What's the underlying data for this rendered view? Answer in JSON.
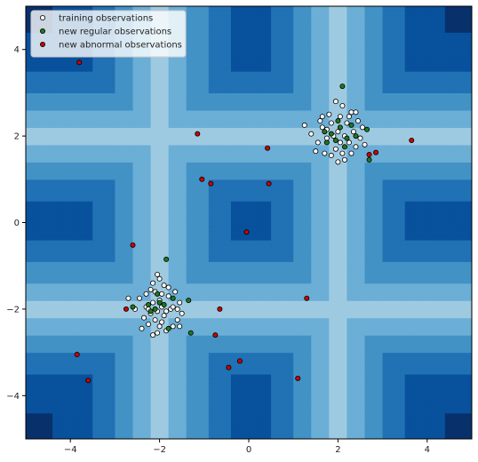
{
  "chart_data": {
    "type": "scatter",
    "title": "",
    "xlabel": "",
    "ylabel": "",
    "xlim": [
      -5,
      5
    ],
    "ylim": [
      -5,
      5
    ],
    "x_ticks": [
      -4,
      -2,
      0,
      2,
      4
    ],
    "y_ticks": [
      -4,
      -2,
      0,
      2,
      4
    ],
    "x_tick_labels": [
      "−4",
      "−2",
      "0",
      "2",
      "4"
    ],
    "y_tick_labels": [
      "−4",
      "−2",
      "0",
      "2",
      "4"
    ],
    "grid": false,
    "legend_position": "top-left",
    "background_contour": {
      "description_colors": [
        "#08306b",
        "#08519c",
        "#2171b5",
        "#4292c6",
        "#6baed6",
        "#9ecae1"
      ],
      "colormap": "Blues_r",
      "cluster_centers": [
        [
          -2,
          -2
        ],
        [
          2,
          2
        ]
      ]
    },
    "series": [
      {
        "name": "training observations",
        "color": "#ffffff",
        "edgecolor": "#000000",
        "points": [
          [
            -2.45,
            -1.75
          ],
          [
            -2.3,
            -1.95
          ],
          [
            -2.2,
            -2.1
          ],
          [
            -2.1,
            -1.6
          ],
          [
            -2.0,
            -1.3
          ],
          [
            -1.9,
            -1.45
          ],
          [
            -1.8,
            -1.7
          ],
          [
            -1.75,
            -2.0
          ],
          [
            -1.6,
            -2.25
          ],
          [
            -1.55,
            -1.85
          ],
          [
            -2.25,
            -2.35
          ],
          [
            -2.05,
            -2.55
          ],
          [
            -1.95,
            -2.3
          ],
          [
            -1.85,
            -2.5
          ],
          [
            -1.7,
            -2.4
          ],
          [
            -2.35,
            -2.2
          ],
          [
            -2.15,
            -1.85
          ],
          [
            -2.05,
            -2.05
          ],
          [
            -1.95,
            -1.95
          ],
          [
            -1.9,
            -2.15
          ],
          [
            -2.3,
            -1.65
          ],
          [
            -2.15,
            -1.4
          ],
          [
            -1.65,
            -1.6
          ],
          [
            -1.5,
            -2.1
          ],
          [
            -2.4,
            -2.45
          ],
          [
            -2.1,
            -2.25
          ],
          [
            -1.8,
            -1.5
          ],
          [
            -2.0,
            -1.8
          ],
          [
            -1.7,
            -1.95
          ],
          [
            -2.55,
            -2.0
          ],
          [
            -2.2,
            -1.55
          ],
          [
            -1.95,
            -1.65
          ],
          [
            -2.05,
            -1.2
          ],
          [
            -1.55,
            -2.4
          ],
          [
            -2.25,
            -2.0
          ],
          [
            -1.85,
            -2.05
          ],
          [
            -2.15,
            -2.6
          ],
          [
            -2.7,
            -1.75
          ],
          [
            -1.6,
            -2.0
          ],
          [
            -2.0,
            -2.4
          ],
          [
            1.4,
            2.05
          ],
          [
            1.55,
            1.85
          ],
          [
            1.65,
            2.2
          ],
          [
            1.75,
            1.95
          ],
          [
            1.8,
            2.5
          ],
          [
            1.85,
            2.3
          ],
          [
            1.95,
            1.7
          ],
          [
            2.0,
            2.1
          ],
          [
            2.05,
            2.45
          ],
          [
            2.1,
            1.6
          ],
          [
            2.15,
            2.0
          ],
          [
            2.2,
            2.3
          ],
          [
            2.25,
            1.85
          ],
          [
            2.3,
            2.55
          ],
          [
            2.35,
            2.1
          ],
          [
            2.4,
            1.75
          ],
          [
            2.45,
            2.35
          ],
          [
            2.5,
            1.95
          ],
          [
            1.9,
            2.0
          ],
          [
            1.7,
            1.6
          ],
          [
            1.6,
            2.35
          ],
          [
            2.0,
            1.4
          ],
          [
            2.1,
            2.7
          ],
          [
            1.95,
            2.8
          ],
          [
            2.25,
            2.45
          ],
          [
            1.5,
            1.65
          ],
          [
            1.75,
            2.15
          ],
          [
            2.55,
            2.2
          ],
          [
            2.6,
            1.8
          ],
          [
            2.05,
            1.85
          ],
          [
            1.85,
            1.55
          ],
          [
            2.4,
            2.55
          ],
          [
            2.3,
            1.6
          ],
          [
            1.25,
            2.25
          ],
          [
            1.65,
            2.45
          ],
          [
            2.15,
            1.45
          ]
        ]
      },
      {
        "name": "new regular observations",
        "color": "#1e7a1e",
        "edgecolor": "#000000",
        "points": [
          [
            -1.85,
            -0.85
          ],
          [
            -2.0,
            -1.85
          ],
          [
            -2.1,
            -2.0
          ],
          [
            -1.9,
            -1.9
          ],
          [
            -2.2,
            -2.05
          ],
          [
            -1.7,
            -1.75
          ],
          [
            -2.05,
            -1.65
          ],
          [
            -1.8,
            -2.45
          ],
          [
            -1.3,
            -2.55
          ],
          [
            -2.6,
            -1.95
          ],
          [
            -1.35,
            -1.8
          ],
          [
            -2.25,
            -1.9
          ],
          [
            2.1,
            3.15
          ],
          [
            1.85,
            2.05
          ],
          [
            2.05,
            2.2
          ],
          [
            2.2,
            1.95
          ],
          [
            1.95,
            1.9
          ],
          [
            2.3,
            2.25
          ],
          [
            1.7,
            2.1
          ],
          [
            2.4,
            2.0
          ],
          [
            2.7,
            1.45
          ],
          [
            2.65,
            2.15
          ],
          [
            2.0,
            2.35
          ],
          [
            1.75,
            1.85
          ],
          [
            2.15,
            1.75
          ]
        ]
      },
      {
        "name": "new abnormal observations",
        "color": "#cc0000",
        "edgecolor": "#000000",
        "points": [
          [
            -3.8,
            3.7
          ],
          [
            -1.15,
            2.05
          ],
          [
            0.42,
            1.72
          ],
          [
            3.65,
            1.9
          ],
          [
            2.85,
            1.62
          ],
          [
            2.7,
            1.57
          ],
          [
            -1.05,
            1.0
          ],
          [
            -0.85,
            0.9
          ],
          [
            0.45,
            0.9
          ],
          [
            -2.6,
            -0.52
          ],
          [
            -0.05,
            -0.22
          ],
          [
            1.3,
            -1.75
          ],
          [
            -2.75,
            -2.0
          ],
          [
            -0.65,
            -2.0
          ],
          [
            -0.75,
            -2.6
          ],
          [
            -0.2,
            -3.2
          ],
          [
            -0.45,
            -3.35
          ],
          [
            -3.85,
            -3.05
          ],
          [
            -3.6,
            -3.65
          ],
          [
            1.1,
            -3.6
          ]
        ]
      }
    ]
  }
}
